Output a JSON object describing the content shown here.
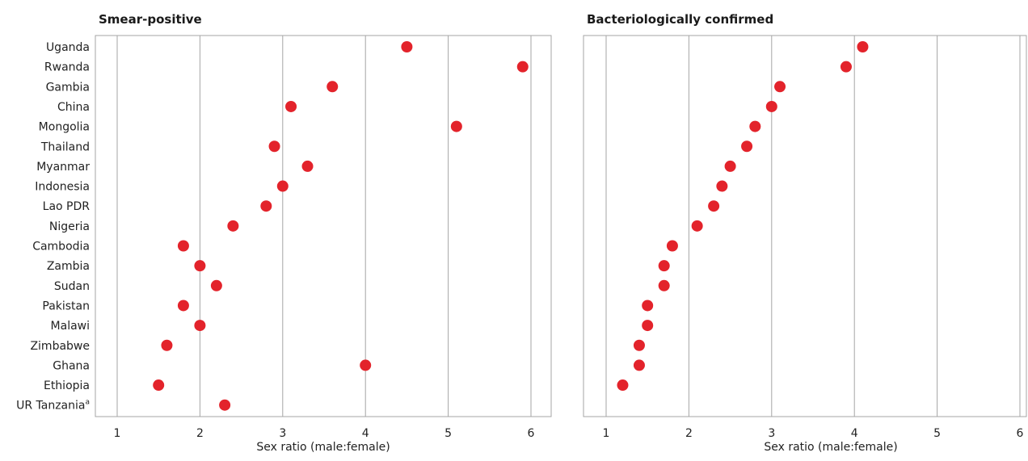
{
  "chart_data": [
    {
      "type": "scatter",
      "title": "Smear-positive",
      "xlabel": "Sex ratio (male:female)",
      "xlim": [
        0.75,
        6.25
      ],
      "xticks": [
        1,
        2,
        3,
        4,
        5,
        6
      ],
      "grid": true,
      "categories": [
        "Uganda",
        "Rwanda",
        "Gambia",
        "China",
        "Mongolia",
        "Thailand",
        "Myanmar",
        "Indonesia",
        "Lao PDR",
        "Nigeria",
        "Cambodia",
        "Zambia",
        "Sudan",
        "Pakistan",
        "Malawi",
        "Zimbabwe",
        "Ghana",
        "Ethiopia",
        "UR Tanzania"
      ],
      "category_footnotes": {
        "UR Tanzania": "a"
      },
      "values": [
        4.5,
        5.9,
        3.6,
        3.1,
        5.1,
        2.9,
        3.3,
        3.0,
        2.8,
        2.4,
        1.8,
        2.0,
        2.2,
        1.8,
        2.0,
        1.6,
        4.0,
        1.5,
        2.3
      ],
      "marker_color": "#e3232b"
    },
    {
      "type": "scatter",
      "title": "Bacteriologically confirmed",
      "xlabel": "Sex ratio (male:female)",
      "xlim": [
        0.75,
        6.25
      ],
      "xticks": [
        1,
        2,
        3,
        4,
        5,
        6
      ],
      "grid": true,
      "categories": [
        "Uganda",
        "Rwanda",
        "Gambia",
        "China",
        "Mongolia",
        "Thailand",
        "Myanmar",
        "Indonesia",
        "Lao PDR",
        "Nigeria",
        "Cambodia",
        "Zambia",
        "Sudan",
        "Pakistan",
        "Malawi",
        "Zimbabwe",
        "Ghana",
        "Ethiopia",
        "UR Tanzania"
      ],
      "values": [
        4.1,
        3.9,
        3.1,
        3.0,
        2.8,
        2.7,
        2.5,
        2.4,
        2.3,
        2.1,
        1.8,
        1.7,
        1.7,
        1.5,
        1.5,
        1.4,
        1.4,
        1.2,
        null
      ],
      "marker_color": "#e3232b"
    }
  ]
}
